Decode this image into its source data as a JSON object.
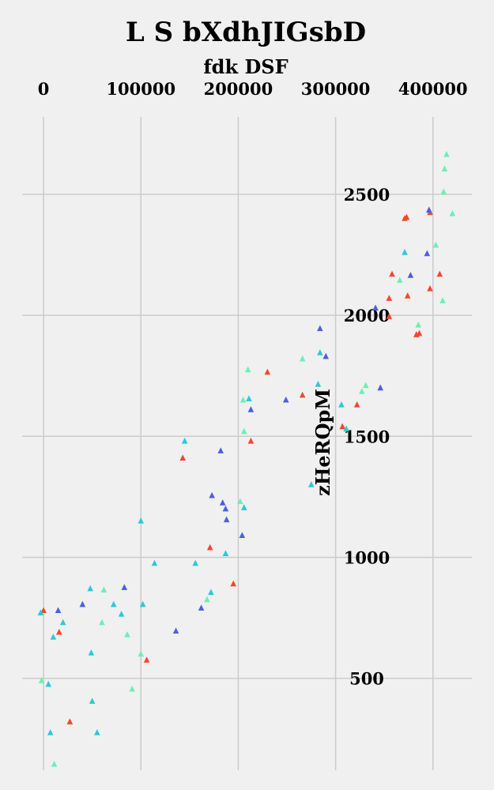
{
  "chart_data": {
    "type": "scatter",
    "title": "L S bXdhJIGsbD",
    "xlabel": "fdk DSF",
    "ylabel": "zHeRQpM",
    "xlim": [
      -22000,
      440000
    ],
    "ylim": [
      120,
      2820
    ],
    "xticks": [
      0,
      100000,
      200000,
      300000,
      400000
    ],
    "yticks": [
      500,
      1000,
      1500,
      2000,
      2500
    ],
    "x_axis_position": "top",
    "y_axis_position": "right",
    "grid": true,
    "marker": "triangle-up",
    "colors": {
      "background": "#f0f0f0",
      "grid": "#cbcbcb",
      "series": [
        "#f4472a",
        "#4c5fe1",
        "#2ec8d8",
        "#67f2b4"
      ]
    },
    "series": [
      {
        "x": [
          0,
          16000,
          27000,
          106000,
          143000,
          171000,
          195000,
          213000,
          230000,
          266000,
          307000,
          322000,
          355000,
          355000,
          358000,
          371000,
          373000,
          374000,
          383000,
          386000,
          397000,
          397000,
          407000
        ],
        "y": [
          780,
          690,
          320,
          575,
          1410,
          1040,
          890,
          1480,
          1765,
          1670,
          1540,
          1630,
          1995,
          2070,
          2170,
          2400,
          2405,
          2080,
          1920,
          1925,
          2110,
          2425,
          2170
        ],
        "values": [
          780,
          690,
          320,
          575,
          1410,
          1040,
          890,
          1480,
          1765,
          1670,
          1540,
          1630,
          1995,
          2070,
          2170,
          2400,
          2405,
          2080,
          1920,
          1925,
          2110,
          2425,
          2170
        ]
      },
      {
        "x": [
          15000,
          40000,
          83000,
          136000,
          162000,
          173000,
          182000,
          184000,
          187000,
          188000,
          204000,
          213000,
          249000,
          284000,
          290000,
          341000,
          346000,
          377000,
          394000,
          396000
        ],
        "y": [
          780,
          805,
          875,
          695,
          790,
          1255,
          1440,
          1225,
          1200,
          1155,
          1090,
          1610,
          1650,
          1945,
          1830,
          2030,
          1700,
          2165,
          2255,
          2435
        ],
        "values": [
          780,
          805,
          875,
          695,
          790,
          1255,
          1440,
          1225,
          1200,
          1155,
          1090,
          1610,
          1650,
          1945,
          1830,
          2030,
          1700,
          2165,
          2255,
          2435
        ]
      },
      {
        "x": [
          -3000,
          5000,
          7000,
          10000,
          20000,
          48000,
          49000,
          50000,
          55000,
          72000,
          80000,
          100000,
          102000,
          114000,
          145000,
          156000,
          172000,
          187000,
          206000,
          211000,
          275000,
          282000,
          284000,
          306000,
          311000,
          371000
        ],
        "y": [
          770,
          475,
          275,
          670,
          730,
          870,
          605,
          405,
          275,
          805,
          765,
          1150,
          805,
          975,
          1480,
          975,
          855,
          1015,
          1205,
          1655,
          1300,
          1715,
          1845,
          1630,
          1530,
          2260
        ],
        "values": [
          770,
          475,
          275,
          670,
          730,
          870,
          605,
          405,
          275,
          805,
          765,
          1150,
          805,
          975,
          1480,
          975,
          855,
          1015,
          1205,
          1655,
          1300,
          1715,
          1845,
          1630,
          1530,
          2260
        ]
      },
      {
        "x": [
          -2000,
          11000,
          60000,
          62000,
          86000,
          91000,
          100000,
          168000,
          202000,
          205000,
          206000,
          210000,
          266000,
          327000,
          331000,
          366000,
          385000,
          403000,
          410000,
          411000,
          412000,
          414000,
          420000
        ],
        "y": [
          490,
          145,
          730,
          865,
          680,
          455,
          600,
          825,
          1230,
          1650,
          1520,
          1775,
          1820,
          1685,
          1710,
          2145,
          1960,
          2290,
          2060,
          2510,
          2605,
          2665,
          2420
        ],
        "values": [
          490,
          145,
          730,
          865,
          680,
          455,
          600,
          825,
          1230,
          1650,
          1520,
          1775,
          1820,
          1685,
          1710,
          2145,
          1960,
          2290,
          2060,
          2510,
          2605,
          2665,
          2420
        ]
      }
    ]
  }
}
